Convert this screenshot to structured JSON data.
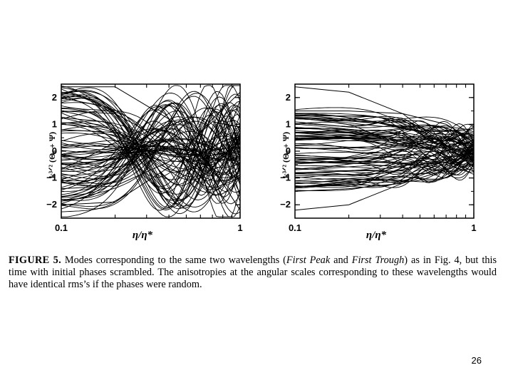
{
  "figure": {
    "caption": {
      "label": "FIGURE 5.",
      "part1": "Modes corresponding to the same two wavelengths (",
      "peak": "First Peak",
      "and": " and ",
      "trough": "First Trough",
      "part2": ") as in Fig. 4, but this time with initial phases scrambled. The anisotropies at the angular scales corresponding to these wavelengths would have identical rms’s if the phases were random."
    }
  },
  "chart_data": [
    {
      "type": "line",
      "ylabel": "k³ᐟ² (Θ₀ + Ψ)",
      "xlabel": "η/η*",
      "x_scale": "log",
      "xlim": [
        0.1,
        1
      ],
      "ylim": [
        -2.5,
        2.5
      ],
      "x_tick_labels": [
        "0.1",
        "1"
      ],
      "y_tick_labels": [
        "2",
        "1",
        "0",
        "−1",
        "−2"
      ],
      "y_ticks": [
        2,
        1,
        0,
        -1,
        -2
      ],
      "mode": "First Peak",
      "n_modes": 90,
      "envelope": "amplitudes up to ~2.4 spanning full range, oscillations growing towards η/η* = 1",
      "series": [
        {
          "x": [
            0.1,
            0.2,
            0.4,
            0.7,
            1.0
          ],
          "y": [
            2.4,
            2.4,
            1.2,
            -0.6,
            -2.2
          ]
        },
        {
          "x": [
            0.1,
            0.2,
            0.4,
            0.7,
            1.0
          ],
          "y": [
            -2.0,
            -1.9,
            -0.6,
            1.2,
            2.2
          ]
        },
        {
          "x": [
            0.1,
            0.2,
            0.4,
            0.7,
            1.0
          ],
          "y": [
            1.5,
            1.4,
            0.3,
            -1.4,
            -1.0
          ]
        },
        {
          "x": [
            0.1,
            0.2,
            0.4,
            0.7,
            1.0
          ],
          "y": [
            -1.4,
            -1.3,
            -0.4,
            1.1,
            0.9
          ]
        },
        {
          "x": [
            0.1,
            0.2,
            0.4,
            0.7,
            1.0
          ],
          "y": [
            0.8,
            0.7,
            0.1,
            -0.9,
            1.9
          ]
        }
      ]
    },
    {
      "type": "line",
      "ylabel": "k³ᐟ² (Θ₀ + Ψ)",
      "xlabel": "η/η*",
      "x_scale": "log",
      "xlim": [
        0.1,
        1
      ],
      "ylim": [
        -2.5,
        2.5
      ],
      "x_tick_labels": [
        "0.1",
        "1"
      ],
      "y_tick_labels": [
        "2",
        "1",
        "0",
        "−1",
        "−2"
      ],
      "y_ticks": [
        2,
        1,
        0,
        -1,
        -2
      ],
      "mode": "First Trough",
      "n_modes": 90,
      "envelope": "amplitudes mostly within ±1.5, slowly varying, converging towards 0 near η/η* = 1",
      "series": [
        {
          "x": [
            0.1,
            0.2,
            0.4,
            0.7,
            1.0
          ],
          "y": [
            2.4,
            2.2,
            1.4,
            0.2,
            -0.6
          ]
        },
        {
          "x": [
            0.1,
            0.2,
            0.4,
            0.7,
            1.0
          ],
          "y": [
            -2.2,
            -2.0,
            -1.2,
            -0.3,
            0.1
          ]
        },
        {
          "x": [
            0.1,
            0.2,
            0.4,
            0.7,
            1.0
          ],
          "y": [
            1.5,
            1.5,
            1.4,
            1.0,
            0.4
          ]
        },
        {
          "x": [
            0.1,
            0.2,
            0.4,
            0.7,
            1.0
          ],
          "y": [
            -1.5,
            -1.4,
            -1.2,
            -0.7,
            -0.2
          ]
        },
        {
          "x": [
            0.1,
            0.2,
            0.4,
            0.7,
            1.0
          ],
          "y": [
            0.5,
            0.5,
            0.4,
            0.1,
            -0.1
          ]
        }
      ]
    }
  ],
  "page_number": "26"
}
